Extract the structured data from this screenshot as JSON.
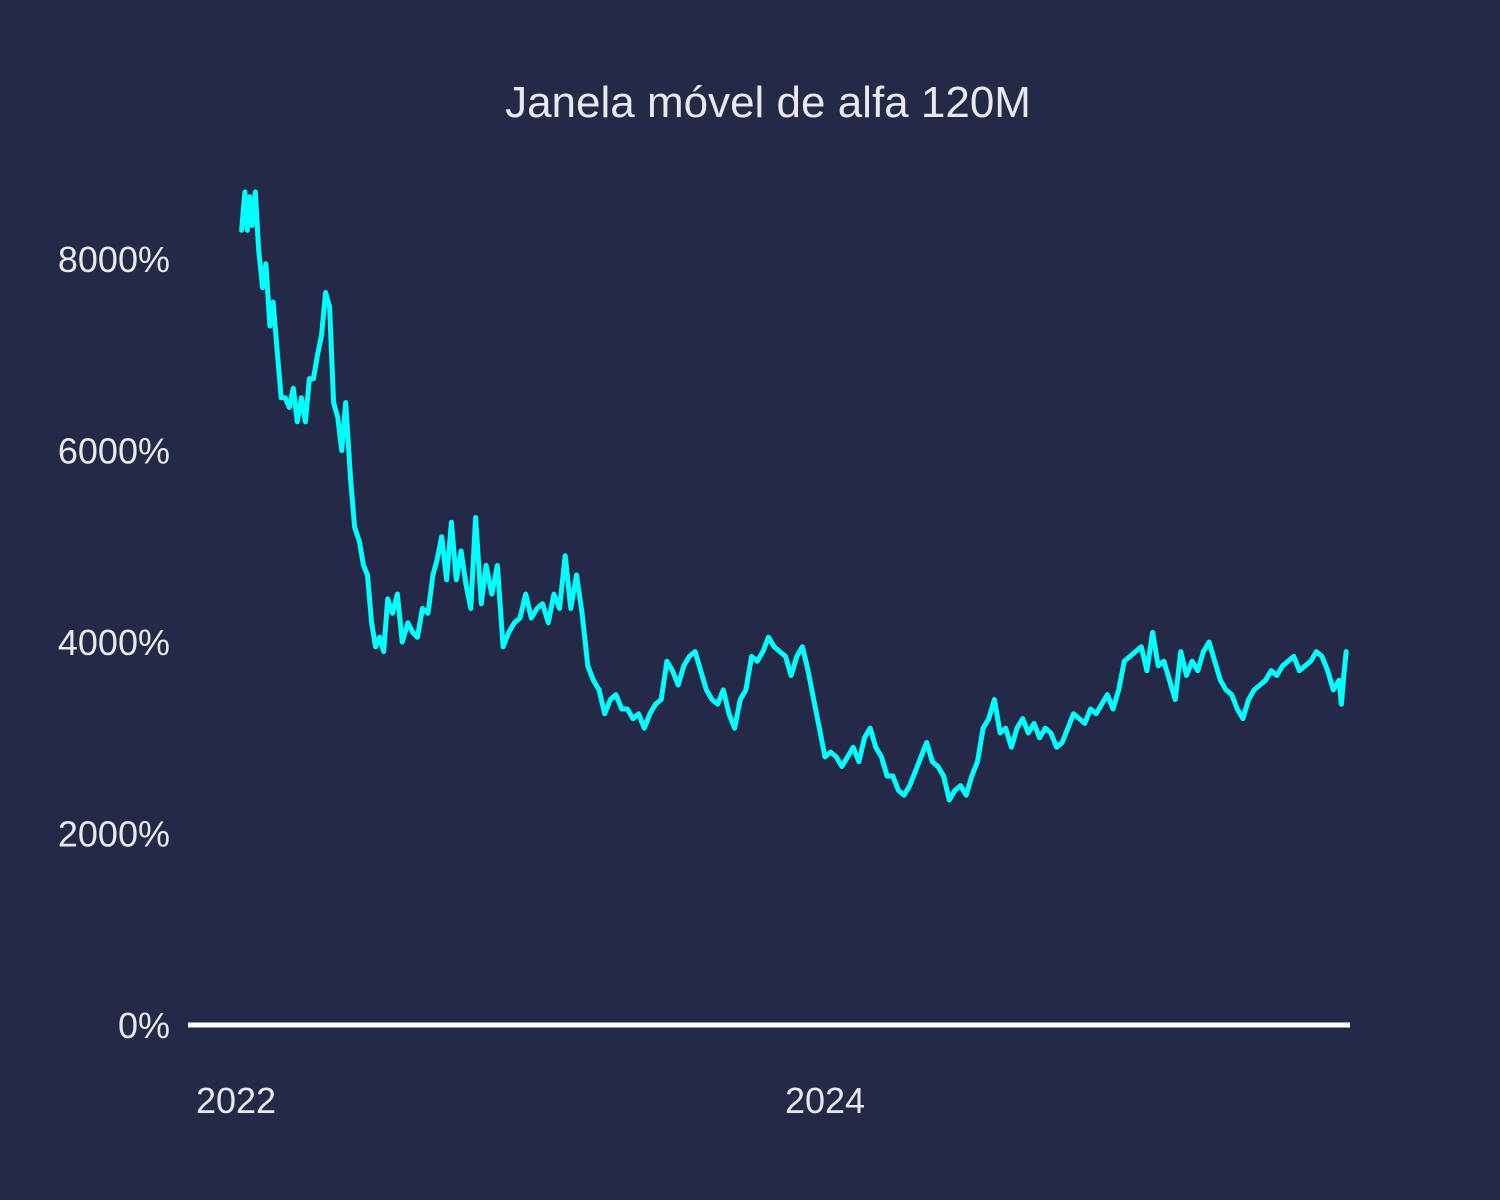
{
  "colors": {
    "background": "#232946",
    "line": "#00FFFF",
    "text": "#E8E8EE",
    "zero_line": "#FFFFFF"
  },
  "chart_data": {
    "type": "line",
    "title": "Janela móvel de alfa 120M",
    "xlabel": "",
    "ylabel": "",
    "x_scale": "time",
    "x_range": [
      "2021-11-01",
      "2025-12-01"
    ],
    "xticks": [
      {
        "value": "2022-01-01",
        "label": "2022"
      },
      {
        "value": "2024-01-01",
        "label": "2024"
      }
    ],
    "ylim": [
      0,
      9000
    ],
    "yticks": [
      {
        "value": 0,
        "label": "0%"
      },
      {
        "value": 2000,
        "label": "2000%"
      },
      {
        "value": 4000,
        "label": "4000%"
      },
      {
        "value": 6000,
        "label": "6000%"
      },
      {
        "value": 8000,
        "label": "8000%"
      }
    ],
    "y_unit": "%",
    "grid": false,
    "legend": "none",
    "reference_line": {
      "y": 0
    },
    "series": [
      {
        "x": [
          "2022-01-08",
          "2022-01-12",
          "2022-01-15",
          "2022-01-18",
          "2022-01-21",
          "2022-01-25",
          "2022-01-29",
          "2022-02-03",
          "2022-02-07",
          "2022-02-12",
          "2022-02-16",
          "2022-02-21",
          "2022-02-26",
          "2022-03-03",
          "2022-03-08",
          "2022-03-13",
          "2022-03-18",
          "2022-03-23",
          "2022-03-28",
          "2022-04-02",
          "2022-04-07",
          "2022-04-12",
          "2022-04-17",
          "2022-04-22",
          "2022-04-27",
          "2022-05-02",
          "2022-05-07",
          "2022-05-12",
          "2022-05-17",
          "2022-05-23",
          "2022-05-28",
          "2022-06-03",
          "2022-06-08",
          "2022-06-13",
          "2022-06-18",
          "2022-06-23",
          "2022-06-28",
          "2022-07-03",
          "2022-07-08",
          "2022-07-14",
          "2022-07-20",
          "2022-07-26",
          "2022-08-02",
          "2022-08-08",
          "2022-08-14",
          "2022-08-20",
          "2022-08-27",
          "2022-09-02",
          "2022-09-07",
          "2022-09-13",
          "2022-09-19",
          "2022-09-25",
          "2022-10-01",
          "2022-10-07",
          "2022-10-13",
          "2022-10-19",
          "2022-10-25",
          "2022-11-01",
          "2022-11-07",
          "2022-11-14",
          "2022-11-21",
          "2022-11-28",
          "2022-12-05",
          "2022-12-12",
          "2022-12-19",
          "2022-12-26",
          "2023-01-02",
          "2023-01-09",
          "2023-01-16",
          "2023-01-23",
          "2023-01-30",
          "2023-02-06",
          "2023-02-13",
          "2023-02-20",
          "2023-02-27",
          "2023-03-06",
          "2023-03-13",
          "2023-03-20",
          "2023-03-27",
          "2023-04-03",
          "2023-04-10",
          "2023-04-17",
          "2023-04-24",
          "2023-05-01",
          "2023-05-08",
          "2023-05-15",
          "2023-05-22",
          "2023-05-29",
          "2023-06-05",
          "2023-06-12",
          "2023-06-19",
          "2023-06-26",
          "2023-07-03",
          "2023-07-10",
          "2023-07-17",
          "2023-07-24",
          "2023-07-31",
          "2023-08-07",
          "2023-08-14",
          "2023-08-21",
          "2023-08-28",
          "2023-09-04",
          "2023-09-11",
          "2023-09-18",
          "2023-09-25",
          "2023-10-02",
          "2023-10-09",
          "2023-10-16",
          "2023-10-23",
          "2023-10-30",
          "2023-11-06",
          "2023-11-13",
          "2023-11-20",
          "2023-11-27",
          "2023-12-04",
          "2023-12-11",
          "2023-12-18",
          "2023-12-25",
          "2024-01-01",
          "2024-01-08",
          "2024-01-15",
          "2024-01-22",
          "2024-01-29",
          "2024-02-05",
          "2024-02-12",
          "2024-02-19",
          "2024-02-26",
          "2024-03-04",
          "2024-03-11",
          "2024-03-18",
          "2024-03-25",
          "2024-04-01",
          "2024-04-08",
          "2024-04-15",
          "2024-04-22",
          "2024-04-29",
          "2024-05-06",
          "2024-05-13",
          "2024-05-20",
          "2024-05-27",
          "2024-06-03",
          "2024-06-10",
          "2024-06-17",
          "2024-06-24",
          "2024-07-01",
          "2024-07-08",
          "2024-07-15",
          "2024-07-22",
          "2024-07-29",
          "2024-08-05",
          "2024-08-12",
          "2024-08-19",
          "2024-08-26",
          "2024-09-02",
          "2024-09-09",
          "2024-09-16",
          "2024-09-23",
          "2024-09-30",
          "2024-10-07",
          "2024-10-14",
          "2024-10-21",
          "2024-10-28",
          "2024-11-04",
          "2024-11-11",
          "2024-11-18",
          "2024-11-25",
          "2024-12-02",
          "2024-12-09",
          "2024-12-16",
          "2024-12-23",
          "2024-12-30",
          "2025-01-06",
          "2025-01-13",
          "2025-01-20",
          "2025-01-27",
          "2025-02-03",
          "2025-02-10",
          "2025-02-17",
          "2025-02-24",
          "2025-03-03",
          "2025-03-10",
          "2025-03-17",
          "2025-03-24",
          "2025-03-31",
          "2025-04-07",
          "2025-04-14",
          "2025-04-21",
          "2025-04-28",
          "2025-05-05",
          "2025-05-12",
          "2025-05-19",
          "2025-05-26",
          "2025-06-02",
          "2025-06-09",
          "2025-06-16",
          "2025-06-23",
          "2025-06-30",
          "2025-07-07",
          "2025-07-14",
          "2025-07-21",
          "2025-07-28",
          "2025-08-04",
          "2025-08-11",
          "2025-08-18",
          "2025-08-25",
          "2025-09-01",
          "2025-09-08",
          "2025-09-15",
          "2025-09-22",
          "2025-09-29",
          "2025-10-02",
          "2025-10-05",
          "2025-10-08"
        ],
        "y": [
          8300,
          8700,
          8300,
          8650,
          8350,
          8700,
          8100,
          7700,
          7950,
          7300,
          7550,
          7050,
          6550,
          6550,
          6450,
          6650,
          6300,
          6550,
          6300,
          6750,
          6750,
          7000,
          7200,
          7650,
          7500,
          6500,
          6350,
          6000,
          6500,
          5700,
          5200,
          5050,
          4800,
          4700,
          4200,
          3950,
          4050,
          3900,
          4450,
          4300,
          4500,
          4000,
          4200,
          4100,
          4050,
          4350,
          4300,
          4700,
          4850,
          5100,
          4650,
          5250,
          4650,
          4950,
          4600,
          4350,
          5300,
          4400,
          4800,
          4500,
          4800,
          3950,
          4100,
          4200,
          4250,
          4500,
          4250,
          4350,
          4400,
          4200,
          4500,
          4350,
          4900,
          4350,
          4700,
          4300,
          3750,
          3600,
          3500,
          3250,
          3400,
          3450,
          3300,
          3300,
          3200,
          3250,
          3100,
          3250,
          3350,
          3400,
          3800,
          3700,
          3550,
          3750,
          3850,
          3900,
          3700,
          3500,
          3400,
          3350,
          3500,
          3250,
          3100,
          3400,
          3500,
          3850,
          3800,
          3900,
          4050,
          3950,
          3900,
          3850,
          3650,
          3850,
          3950,
          3700,
          3400,
          3100,
          2800,
          2850,
          2800,
          2700,
          2800,
          2900,
          2750,
          3000,
          3100,
          2900,
          2800,
          2600,
          2600,
          2450,
          2400,
          2500,
          2650,
          2800,
          2950,
          2750,
          2700,
          2600,
          2350,
          2450,
          2500,
          2400,
          2600,
          2750,
          3100,
          3200,
          3400,
          3050,
          3100,
          2900,
          3100,
          3200,
          3050,
          3150,
          3000,
          3100,
          3050,
          2900,
          2950,
          3100,
          3250,
          3200,
          3150,
          3300,
          3250,
          3350,
          3450,
          3300,
          3500,
          3800,
          3850,
          3900,
          3950,
          3700,
          4100,
          3750,
          3800,
          3600,
          3400,
          3900,
          3650,
          3800,
          3700,
          3900,
          4000,
          3800,
          3600,
          3500,
          3450,
          3300,
          3200,
          3400,
          3500,
          3550,
          3600,
          3700,
          3650,
          3750,
          3800,
          3850,
          3700,
          3750,
          3800,
          3900,
          3850,
          3700,
          3500,
          3600,
          3350,
          3650,
          3900
        ]
      }
    ]
  }
}
